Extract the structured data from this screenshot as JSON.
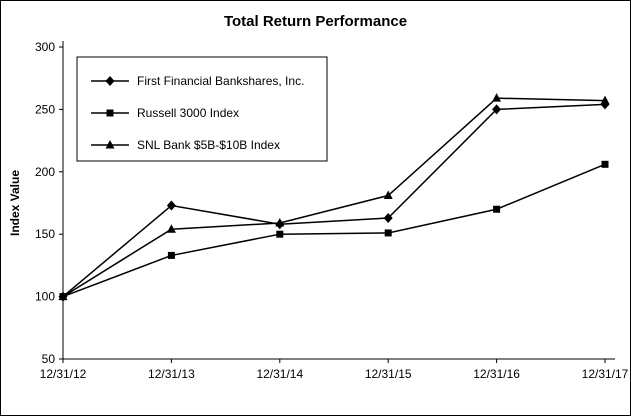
{
  "chart_data": {
    "type": "line",
    "title": "Total Return Performance",
    "xlabel": "",
    "ylabel": "Index Value",
    "categories": [
      "12/31/12",
      "12/31/13",
      "12/31/14",
      "12/31/15",
      "12/31/16",
      "12/31/17"
    ],
    "series": [
      {
        "name": "First Financial Bankshares, Inc.",
        "marker": "diamond",
        "values": [
          100,
          173,
          158,
          163,
          250,
          254
        ]
      },
      {
        "name": "Russell 3000 Index",
        "marker": "square",
        "values": [
          100,
          133,
          150,
          151,
          170,
          206
        ]
      },
      {
        "name": "SNL Bank $5B-$10B Index",
        "marker": "triangle",
        "values": [
          100,
          154,
          159,
          181,
          259,
          257
        ]
      }
    ],
    "ylim": [
      50,
      300
    ],
    "yticks": [
      50,
      100,
      150,
      200,
      250,
      300
    ],
    "grid": false,
    "legend_position": "top-left-inside",
    "line_color": "#000000",
    "marker_color": "#000000",
    "background": "#ffffff"
  }
}
